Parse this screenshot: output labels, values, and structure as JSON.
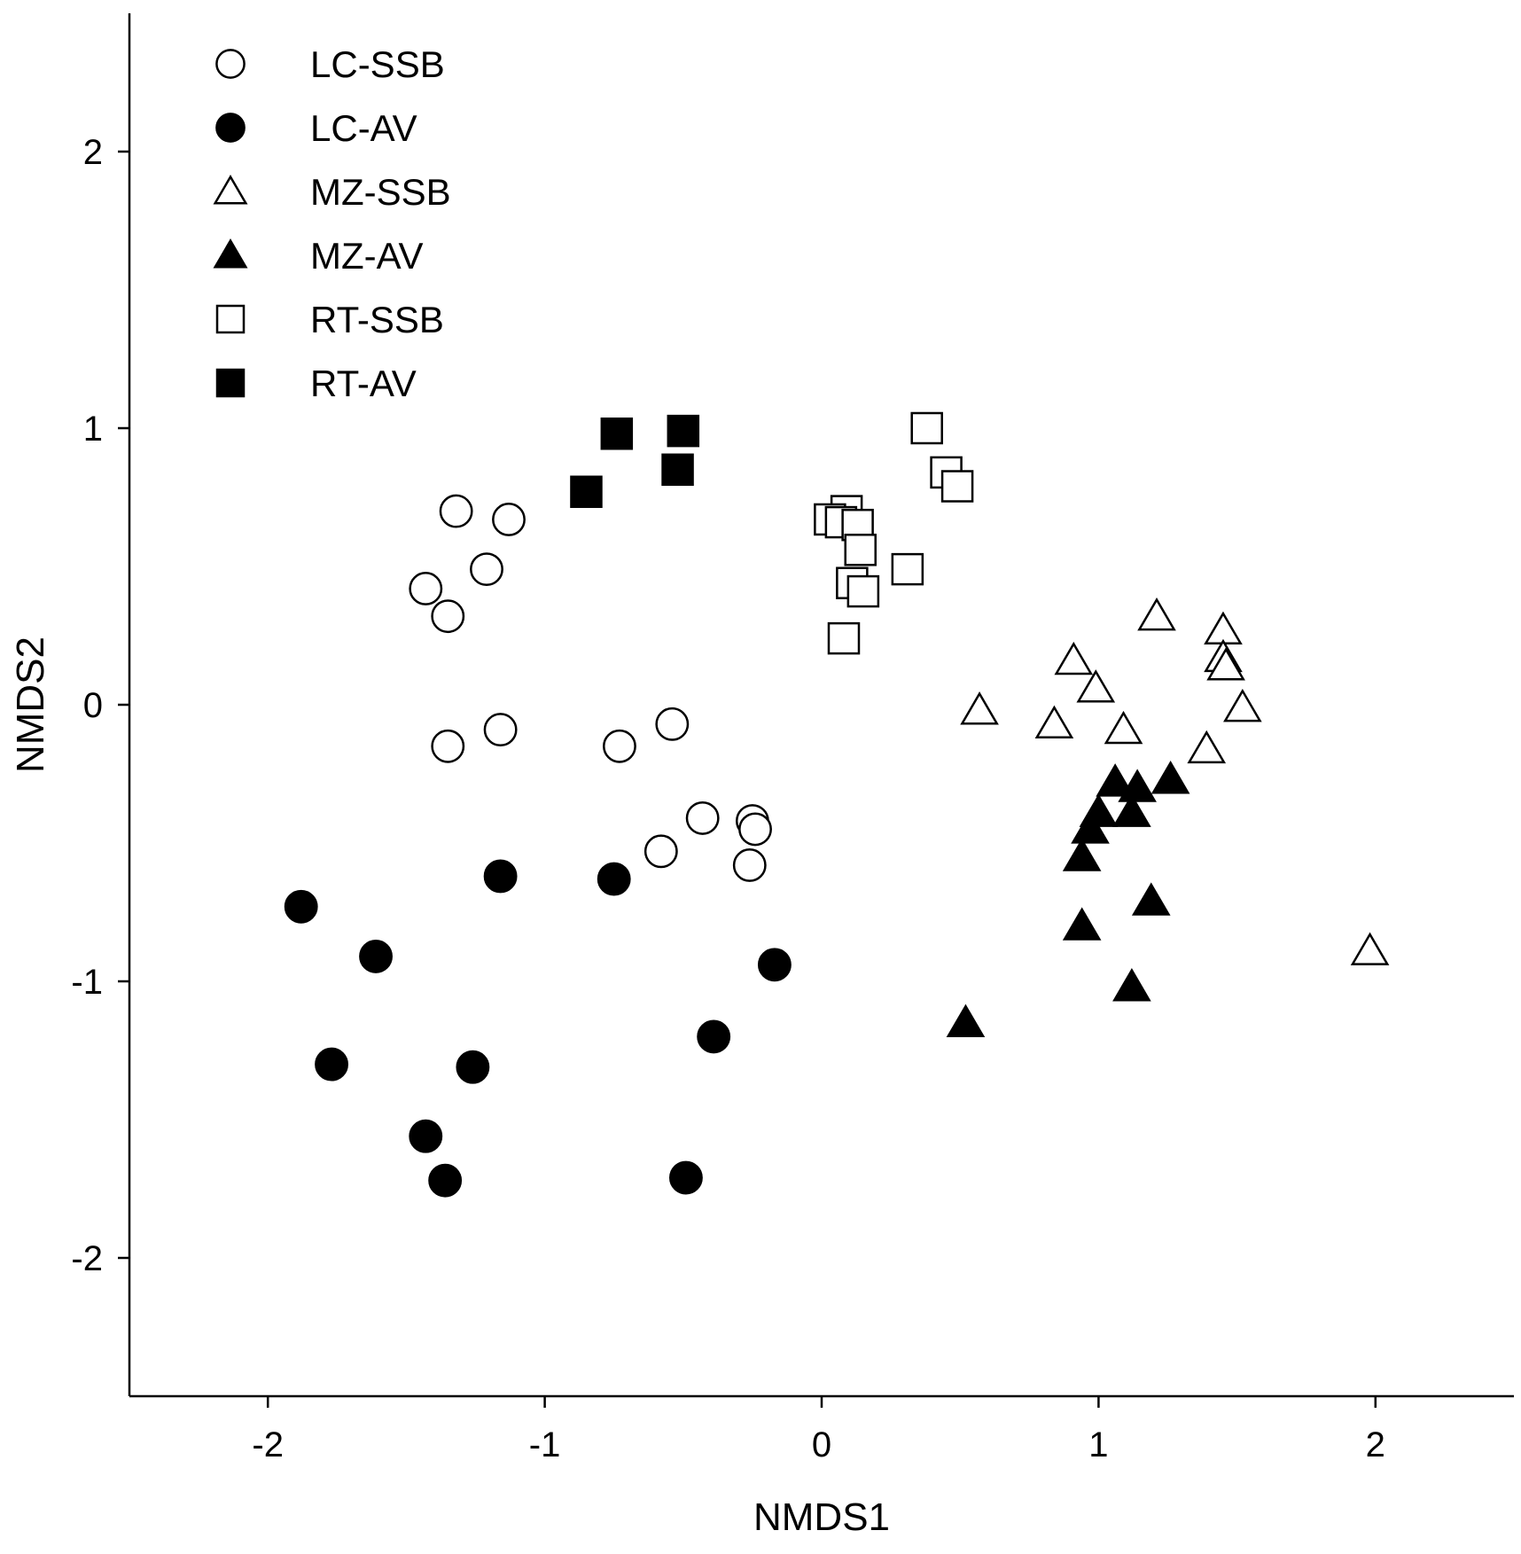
{
  "chart_data": {
    "type": "scatter",
    "title": "",
    "xlabel": "NMDS1",
    "ylabel": "NMDS2",
    "xlim": [
      -2.5,
      2.5
    ],
    "ylim": [
      -2.5,
      2.5
    ],
    "xticks": [
      -2,
      -1,
      0,
      1,
      2
    ],
    "yticks": [
      -2,
      -1,
      0,
      1,
      2
    ],
    "xtick_labels": [
      "-2",
      "-1",
      "0",
      "1",
      "2"
    ],
    "ytick_labels": [
      "-2",
      "-1",
      "0",
      "1",
      "2"
    ],
    "grid": false,
    "legend_position": "top-left",
    "series": [
      {
        "name": "LC-SSB",
        "marker": "circle",
        "filled": false,
        "points": [
          [
            -1.32,
            0.7
          ],
          [
            -1.13,
            0.67
          ],
          [
            -1.21,
            0.49
          ],
          [
            -1.43,
            0.42
          ],
          [
            -1.35,
            0.32
          ],
          [
            -1.35,
            -0.15
          ],
          [
            -1.16,
            -0.09
          ],
          [
            -0.73,
            -0.15
          ],
          [
            -0.54,
            -0.07
          ],
          [
            -0.43,
            -0.41
          ],
          [
            -0.25,
            -0.42
          ],
          [
            -0.24,
            -0.45
          ],
          [
            -0.58,
            -0.53
          ],
          [
            -0.26,
            -0.58
          ]
        ]
      },
      {
        "name": "LC-AV",
        "marker": "circle",
        "filled": true,
        "points": [
          [
            -1.88,
            -0.73
          ],
          [
            -1.61,
            -0.91
          ],
          [
            -1.16,
            -0.62
          ],
          [
            -0.75,
            -0.63
          ],
          [
            -0.17,
            -0.94
          ],
          [
            -1.77,
            -1.3
          ],
          [
            -1.26,
            -1.31
          ],
          [
            -1.43,
            -1.56
          ],
          [
            -1.36,
            -1.72
          ],
          [
            -0.39,
            -1.2
          ],
          [
            -0.49,
            -1.71
          ]
        ]
      },
      {
        "name": "MZ-SSB",
        "marker": "triangle",
        "filled": false,
        "points": [
          [
            1.21,
            0.32
          ],
          [
            1.45,
            0.27
          ],
          [
            1.45,
            0.17
          ],
          [
            1.46,
            0.14
          ],
          [
            0.91,
            0.16
          ],
          [
            0.99,
            0.06
          ],
          [
            0.57,
            -0.02
          ],
          [
            0.84,
            -0.07
          ],
          [
            1.09,
            -0.09
          ],
          [
            1.52,
            -0.01
          ],
          [
            1.39,
            -0.16
          ],
          [
            1.98,
            -0.89
          ]
        ]
      },
      {
        "name": "MZ-AV",
        "marker": "triangle",
        "filled": true,
        "points": [
          [
            1.06,
            -0.28
          ],
          [
            1.14,
            -0.3
          ],
          [
            1.26,
            -0.27
          ],
          [
            1.0,
            -0.39
          ],
          [
            1.12,
            -0.39
          ],
          [
            0.97,
            -0.45
          ],
          [
            0.94,
            -0.55
          ],
          [
            1.19,
            -0.71
          ],
          [
            0.94,
            -0.8
          ],
          [
            1.12,
            -1.02
          ],
          [
            0.52,
            -1.15
          ]
        ]
      },
      {
        "name": "RT-SSB",
        "marker": "square",
        "filled": false,
        "points": [
          [
            0.38,
            1.0
          ],
          [
            0.45,
            0.84
          ],
          [
            0.49,
            0.79
          ],
          [
            0.09,
            0.7
          ],
          [
            0.03,
            0.67
          ],
          [
            0.07,
            0.66
          ],
          [
            0.13,
            0.65
          ],
          [
            0.14,
            0.56
          ],
          [
            0.11,
            0.44
          ],
          [
            0.15,
            0.41
          ],
          [
            0.31,
            0.49
          ],
          [
            0.08,
            0.24
          ]
        ]
      },
      {
        "name": "RT-AV",
        "marker": "square",
        "filled": true,
        "points": [
          [
            -0.74,
            0.98
          ],
          [
            -0.5,
            0.99
          ],
          [
            -0.52,
            0.85
          ],
          [
            -0.85,
            0.77
          ]
        ]
      }
    ]
  }
}
